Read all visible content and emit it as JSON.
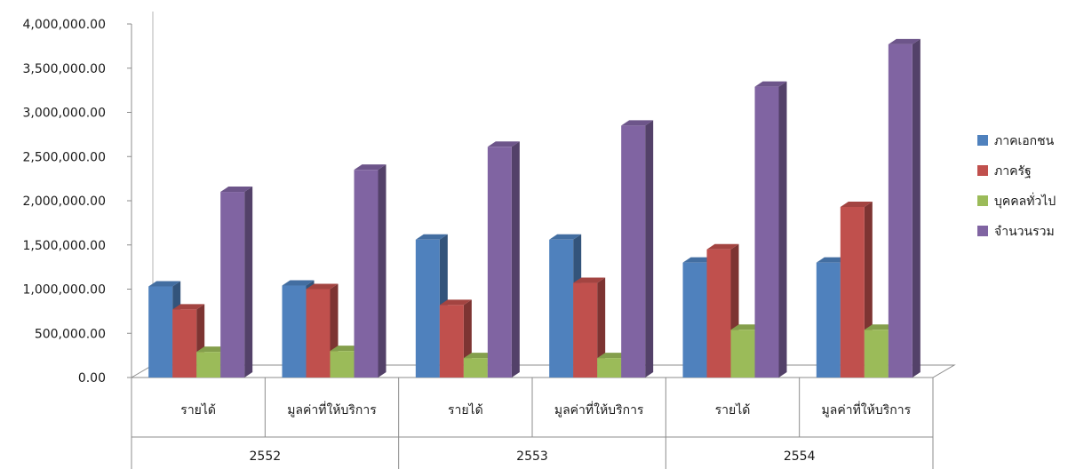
{
  "chart_data": {
    "type": "bar",
    "title": "",
    "xlabel": "",
    "ylabel": "",
    "ylim": [
      0,
      4000000
    ],
    "yticks": [
      "0.00",
      "500,000.00",
      "1,000,000.00",
      "1,500,000.00",
      "2,000,000.00",
      "2,500,000.00",
      "3,000,000.00",
      "3,500,000.00",
      "4,000,000.00"
    ],
    "groups": [
      "2552",
      "2553",
      "2554"
    ],
    "categories": [
      "รายได้",
      "มูลค่าที่ให้บริการ",
      "รายได้",
      "มูลค่าที่ให้บริการ",
      "รายได้",
      "มูลค่าที่ให้บริการ"
    ],
    "series": [
      {
        "name": "ภาคเอกชน",
        "color": "#4F81BD",
        "values": [
          1030000,
          1040000,
          1560000,
          1560000,
          1300000,
          1300000
        ]
      },
      {
        "name": "ภาครัฐ",
        "color": "#C0504D",
        "values": [
          770000,
          1000000,
          820000,
          1070000,
          1450000,
          1930000
        ]
      },
      {
        "name": "บุคคลทั่วไป",
        "color": "#9BBB59",
        "values": [
          290000,
          300000,
          220000,
          220000,
          540000,
          540000
        ]
      },
      {
        "name": "จำนวนรวม",
        "color": "#8064A2",
        "values": [
          2100000,
          2350000,
          2610000,
          2850000,
          3290000,
          3770000
        ]
      }
    ],
    "legend": "right",
    "style": "3d-clustered-column",
    "grid": false
  }
}
